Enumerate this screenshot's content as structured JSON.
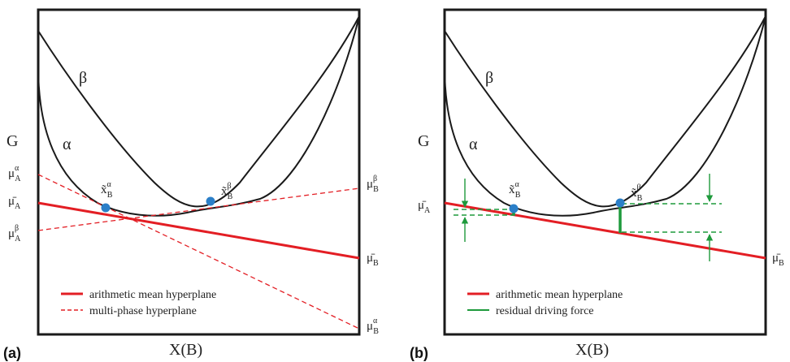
{
  "panels": [
    {
      "letter": "(a)",
      "xlabel": "X(B)",
      "ylabel": "G",
      "curve_labels": {
        "beta": "β",
        "alpha": "α"
      },
      "points": [
        {
          "main": "x̃",
          "sub": "B",
          "sup": "α"
        },
        {
          "main": "x̃",
          "sub": "B",
          "sup": "β"
        }
      ],
      "left_labels": [
        {
          "main": "μ",
          "sub": "A",
          "sup": "α"
        },
        {
          "main": "μ̄",
          "sub": "A",
          "sup": ""
        },
        {
          "main": "μ",
          "sub": "A",
          "sup": "β"
        }
      ],
      "right_labels": [
        {
          "main": "μ",
          "sub": "B",
          "sup": "β"
        },
        {
          "main": "μ̄",
          "sub": "B",
          "sup": ""
        },
        {
          "main": "μ",
          "sub": "B",
          "sup": "α"
        }
      ],
      "legend": [
        "arithmetic mean hyperplane",
        "multi-phase hyperplane"
      ]
    },
    {
      "letter": "(b)",
      "xlabel": "X(B)",
      "ylabel": "G",
      "curve_labels": {
        "beta": "β",
        "alpha": "α"
      },
      "points": [
        {
          "main": "x̃",
          "sub": "B",
          "sup": "α"
        },
        {
          "main": "x̃",
          "sub": "B",
          "sup": "β"
        }
      ],
      "left_labels": [
        {
          "main": "μ̄",
          "sub": "A",
          "sup": ""
        }
      ],
      "right_labels": [
        {
          "main": "μ̄",
          "sub": "B",
          "sup": ""
        }
      ],
      "legend": [
        "arithmetic mean hyperplane",
        "residual driving force"
      ]
    }
  ],
  "colors": {
    "frame": "#1a1a1a",
    "curve": "#1a1a1a",
    "mean_line": "#e31e24",
    "hyperplane": "#e31e24",
    "residual": "#1e9a3c",
    "point": "#2b7fc8"
  }
}
